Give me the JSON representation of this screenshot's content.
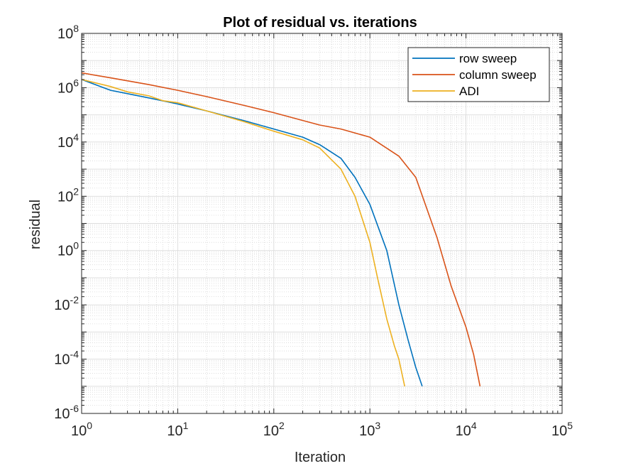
{
  "chart_data": {
    "type": "line",
    "title": "Plot of residual vs. iterations",
    "xlabel": "Iteration",
    "ylabel": "residual",
    "xscale": "log",
    "yscale": "log",
    "xlim": [
      1,
      100000
    ],
    "ylim": [
      1e-06,
      100000000
    ],
    "x_tick_labels": [
      {
        "base": "10",
        "exp": "0"
      },
      {
        "base": "10",
        "exp": "1"
      },
      {
        "base": "10",
        "exp": "2"
      },
      {
        "base": "10",
        "exp": "3"
      },
      {
        "base": "10",
        "exp": "4"
      },
      {
        "base": "10",
        "exp": "5"
      }
    ],
    "y_tick_labels": [
      {
        "base": "10",
        "exp": "-6"
      },
      {
        "base": "10",
        "exp": "-4"
      },
      {
        "base": "10",
        "exp": "-2"
      },
      {
        "base": "10",
        "exp": "0"
      },
      {
        "base": "10",
        "exp": "2"
      },
      {
        "base": "10",
        "exp": "4"
      },
      {
        "base": "10",
        "exp": "6"
      },
      {
        "base": "10",
        "exp": "8"
      }
    ],
    "grid": true,
    "minor_grid": true,
    "legend_position": "top-right",
    "series": [
      {
        "name": "row sweep",
        "color": "#0072BD",
        "x": [
          1,
          2,
          5,
          10,
          20,
          50,
          100,
          200,
          300,
          500,
          700,
          1000,
          1500,
          2000,
          2500,
          3000,
          3500
        ],
        "y": [
          2000000,
          800000,
          420000,
          250000,
          140000,
          60000,
          30000,
          15000,
          8000,
          2500,
          500,
          50,
          1,
          0.01,
          0.0005,
          5e-05,
          1e-05
        ]
      },
      {
        "name": "column sweep",
        "color": "#D95319",
        "x": [
          1,
          2,
          5,
          10,
          20,
          50,
          100,
          200,
          300,
          500,
          1000,
          2000,
          3000,
          5000,
          7000,
          10000,
          12000,
          14000
        ],
        "y": [
          3500000,
          2300000,
          1300000,
          800000,
          470000,
          220000,
          120000,
          62000,
          42000,
          30000,
          15000,
          3000,
          500,
          3,
          0.05,
          0.0015,
          0.00015,
          1e-05
        ]
      },
      {
        "name": "ADI",
        "color": "#EDB120",
        "x": [
          1,
          2,
          3,
          5,
          7,
          10,
          20,
          50,
          100,
          200,
          300,
          500,
          700,
          1000,
          1200,
          1500,
          1800,
          2000,
          2300
        ],
        "y": [
          2000000,
          1100000,
          700000,
          500000,
          330000,
          280000,
          140000,
          55000,
          25000,
          12000,
          6000,
          1000,
          100,
          2,
          0.1,
          0.003,
          0.0003,
          0.0001,
          1e-05
        ]
      }
    ]
  }
}
